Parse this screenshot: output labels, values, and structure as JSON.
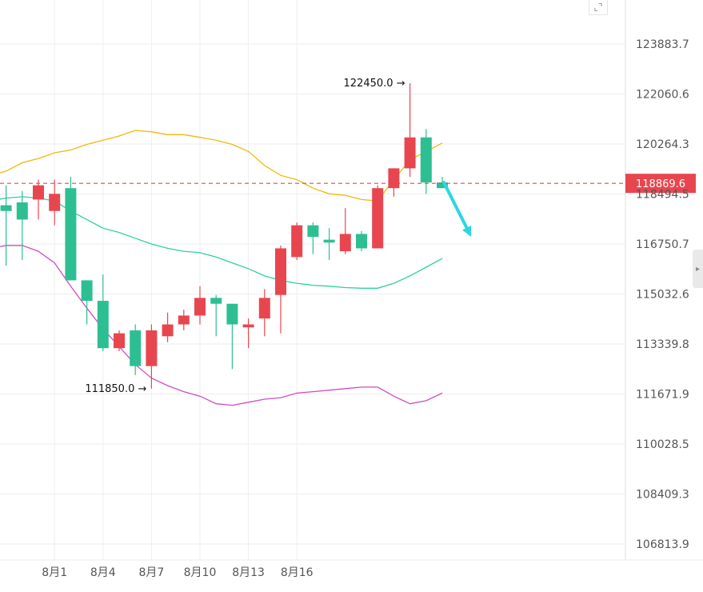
{
  "chart_data": {
    "type": "candlestick",
    "x_tick_labels": [
      "8月1",
      "8月4",
      "8月7",
      "8月10",
      "8月13",
      "8月16"
    ],
    "y_tick_labels": [
      "123883.7",
      "122060.6",
      "120264.3",
      "118494.5",
      "116750.7",
      "115032.6",
      "113339.8",
      "111671.9",
      "110028.5",
      "108409.3",
      "106813.9"
    ],
    "ylim": [
      106813.9,
      123883.7
    ],
    "y_scale": "log",
    "current_price": "118869.6",
    "annotations": [
      {
        "text": "122450.0",
        "x": 23,
        "y": 122450.0
      },
      {
        "text": "111850.0",
        "x": 7,
        "y": 111850.0
      }
    ],
    "candles": [
      {
        "x": -3,
        "open": 117800,
        "high": 119300,
        "low": 116200,
        "close": 118000
      },
      {
        "x": -2,
        "open": 118100,
        "high": 118800,
        "low": 116000,
        "close": 117900
      },
      {
        "x": -1,
        "open": 118200,
        "high": 118600,
        "low": 116200,
        "close": 117600
      },
      {
        "x": 0,
        "open": 118300,
        "high": 119000,
        "low": 117600,
        "close": 118800
      },
      {
        "x": 1,
        "open": 117900,
        "high": 119000,
        "low": 117400,
        "close": 118500
      },
      {
        "x": 2,
        "open": 118700,
        "high": 119100,
        "low": 115500,
        "close": 115500
      },
      {
        "x": 3,
        "open": 115500,
        "high": 115500,
        "low": 114000,
        "close": 114800
      },
      {
        "x": 4,
        "open": 114800,
        "high": 115700,
        "low": 113100,
        "close": 113200
      },
      {
        "x": 5,
        "open": 113200,
        "high": 113800,
        "low": 113100,
        "close": 113700
      },
      {
        "x": 6,
        "open": 113800,
        "high": 114000,
        "low": 112300,
        "close": 112600
      },
      {
        "x": 7,
        "open": 112600,
        "high": 114000,
        "low": 111850,
        "close": 113800
      },
      {
        "x": 8,
        "open": 113600,
        "high": 114400,
        "low": 113400,
        "close": 114000
      },
      {
        "x": 9,
        "open": 114000,
        "high": 114500,
        "low": 113800,
        "close": 114300
      },
      {
        "x": 10,
        "open": 114300,
        "high": 115300,
        "low": 114000,
        "close": 114900
      },
      {
        "x": 11,
        "open": 114900,
        "high": 115000,
        "low": 113600,
        "close": 114700
      },
      {
        "x": 12,
        "open": 114700,
        "high": 114700,
        "low": 112500,
        "close": 114000
      },
      {
        "x": 13,
        "open": 113900,
        "high": 114200,
        "low": 113200,
        "close": 114000
      },
      {
        "x": 14,
        "open": 114200,
        "high": 115200,
        "low": 113600,
        "close": 114900
      },
      {
        "x": 15,
        "open": 115000,
        "high": 116700,
        "low": 113700,
        "close": 116600
      },
      {
        "x": 16,
        "open": 116300,
        "high": 117500,
        "low": 116200,
        "close": 117400
      },
      {
        "x": 17,
        "open": 117400,
        "high": 117500,
        "low": 116400,
        "close": 117000
      },
      {
        "x": 18,
        "open": 116900,
        "high": 117300,
        "low": 116200,
        "close": 116800
      },
      {
        "x": 19,
        "open": 116500,
        "high": 118000,
        "low": 116400,
        "close": 117100
      },
      {
        "x": 20,
        "open": 117100,
        "high": 117200,
        "low": 116500,
        "close": 116600
      },
      {
        "x": 21,
        "open": 116600,
        "high": 118800,
        "low": 116600,
        "close": 118700
      },
      {
        "x": 22,
        "open": 118700,
        "high": 119400,
        "low": 118400,
        "close": 119400
      },
      {
        "x": 23,
        "open": 119400,
        "high": 122450,
        "low": 119100,
        "close": 120500
      },
      {
        "x": 24,
        "open": 120500,
        "high": 120800,
        "low": 118500,
        "close": 118900
      },
      {
        "x": 25,
        "open": 118900,
        "high": 119100,
        "low": 118700,
        "close": 118700
      }
    ],
    "bollinger": {
      "upper": {
        "color": "#f0b90b",
        "points": [
          [
            -3.6,
            119200
          ],
          [
            -2.9,
            119150
          ],
          [
            -2,
            119300
          ],
          [
            -1,
            119600
          ],
          [
            0,
            119750
          ],
          [
            1,
            119950
          ],
          [
            2,
            120050
          ],
          [
            3,
            120250
          ],
          [
            4,
            120400
          ],
          [
            5,
            120550
          ],
          [
            6,
            120750
          ],
          [
            7,
            120700
          ],
          [
            8,
            120600
          ],
          [
            9,
            120600
          ],
          [
            10,
            120500
          ],
          [
            11,
            120400
          ],
          [
            12,
            120250
          ],
          [
            13,
            120000
          ],
          [
            14,
            119500
          ],
          [
            15,
            119150
          ],
          [
            16,
            119000
          ],
          [
            17,
            118700
          ],
          [
            18,
            118500
          ],
          [
            19,
            118450
          ],
          [
            20,
            118300
          ],
          [
            21,
            118250
          ],
          [
            22,
            119000
          ],
          [
            23,
            119700
          ],
          [
            24,
            120000
          ],
          [
            25,
            120300
          ]
        ]
      },
      "middle": {
        "color": "#2fd0a3",
        "points": [
          [
            -3.6,
            118300
          ],
          [
            -3,
            118250
          ],
          [
            -2,
            118350
          ],
          [
            -1,
            118400
          ],
          [
            0,
            118350
          ],
          [
            1,
            118250
          ],
          [
            2,
            117900
          ],
          [
            3,
            117600
          ],
          [
            4,
            117300
          ],
          [
            5,
            117150
          ],
          [
            6,
            116950
          ],
          [
            7,
            116750
          ],
          [
            8,
            116600
          ],
          [
            9,
            116500
          ],
          [
            10,
            116450
          ],
          [
            11,
            116300
          ],
          [
            12,
            116100
          ],
          [
            13,
            115900
          ],
          [
            14,
            115650
          ],
          [
            15,
            115500
          ],
          [
            16,
            115400
          ],
          [
            17,
            115330
          ],
          [
            18,
            115300
          ],
          [
            19,
            115250
          ],
          [
            20,
            115230
          ],
          [
            21,
            115230
          ],
          [
            22,
            115400
          ],
          [
            23,
            115650
          ],
          [
            24,
            115950
          ],
          [
            25,
            116250
          ]
        ]
      },
      "lower": {
        "color": "#d04cc4",
        "points": [
          [
            -3.6,
            116600
          ],
          [
            -3,
            116600
          ],
          [
            -2,
            116700
          ],
          [
            -1,
            116700
          ],
          [
            0,
            116500
          ],
          [
            1,
            116100
          ],
          [
            2,
            115300
          ],
          [
            3,
            114550
          ],
          [
            4,
            113850
          ],
          [
            5,
            113250
          ],
          [
            6,
            112650
          ],
          [
            7,
            112200
          ],
          [
            8,
            111950
          ],
          [
            9,
            111750
          ],
          [
            10,
            111600
          ],
          [
            11,
            111350
          ],
          [
            12,
            111300
          ],
          [
            13,
            111400
          ],
          [
            14,
            111500
          ],
          [
            15,
            111550
          ],
          [
            16,
            111700
          ],
          [
            17,
            111750
          ],
          [
            18,
            111800
          ],
          [
            19,
            111850
          ],
          [
            20,
            111900
          ],
          [
            21,
            111900
          ],
          [
            22,
            111600
          ],
          [
            23,
            111350
          ],
          [
            24,
            111450
          ],
          [
            25,
            111700
          ]
        ]
      }
    },
    "trend_arrow": {
      "from": [
        25.1,
        118900
      ],
      "to": [
        26.7,
        117100
      ],
      "color": "#2bd6e0"
    }
  },
  "ui": {
    "corner_icon": "expand-corner-icon",
    "side_handle_icon": "chevron-right-icon",
    "colors": {
      "up": "#e8464f",
      "down": "#2dbf92",
      "grid": "#eeeeee",
      "price_line": "#e8464f"
    }
  }
}
